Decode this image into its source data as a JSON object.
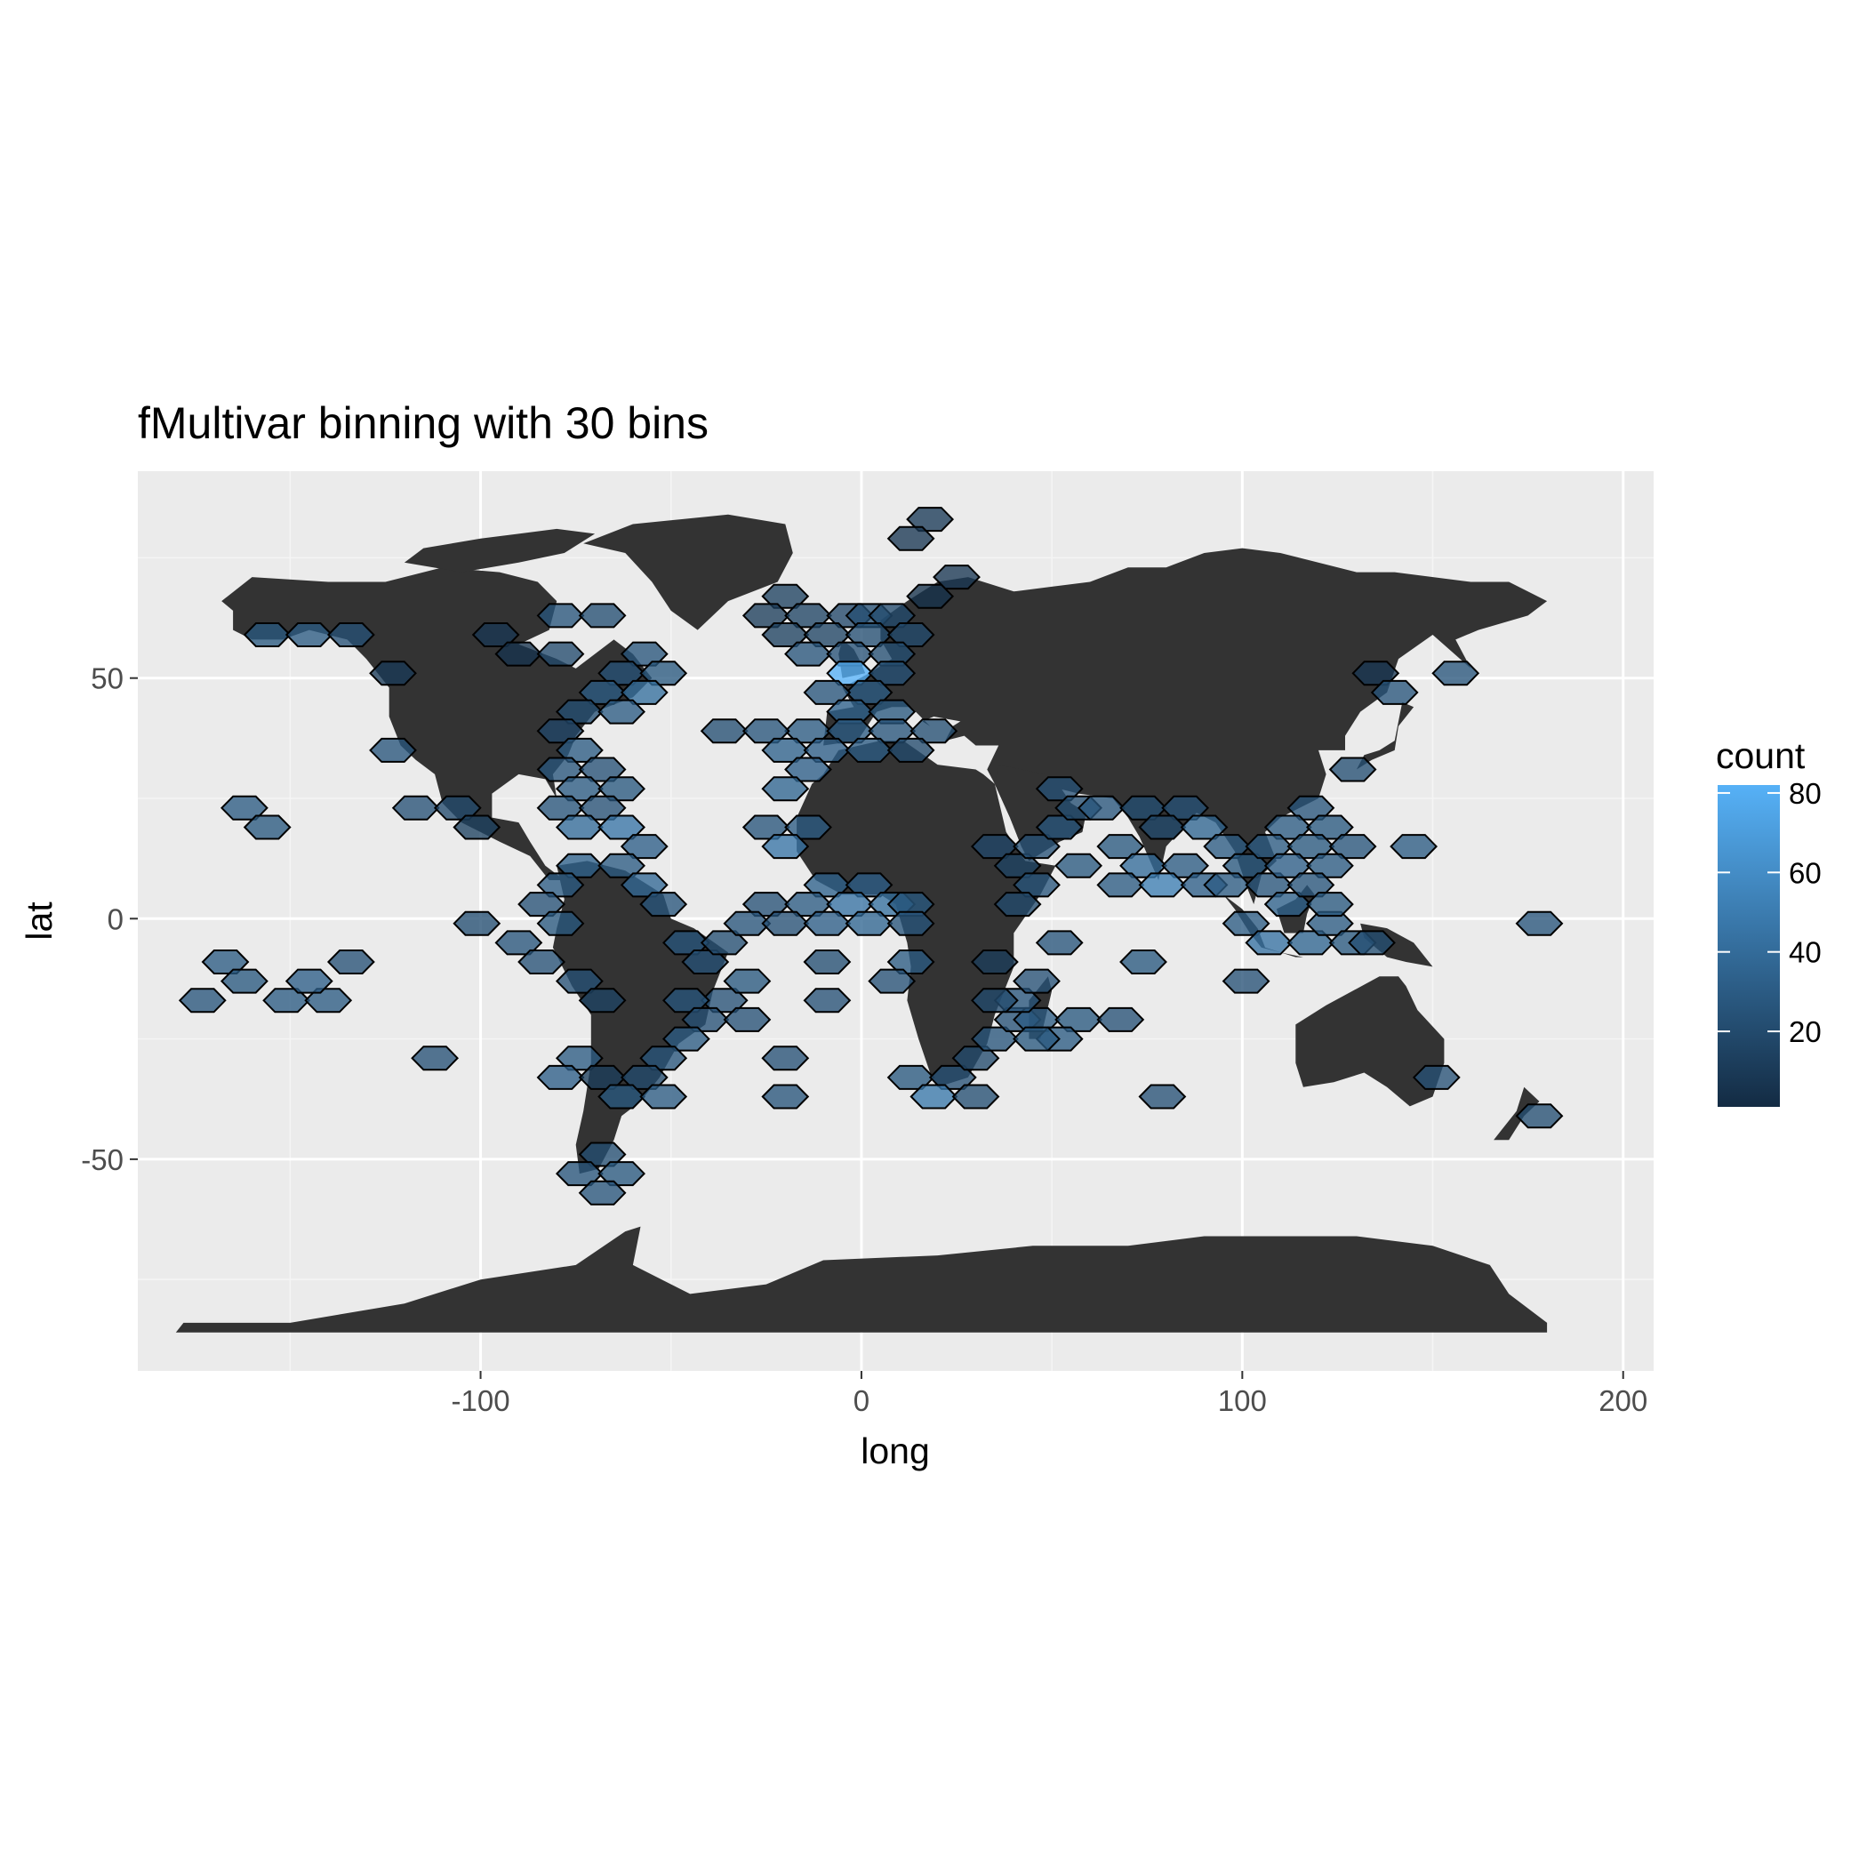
{
  "chart_data": {
    "type": "heatmap",
    "subtype": "hexbin",
    "title": "fMultivar binning with 30 bins",
    "xlabel": "long",
    "ylabel": "lat",
    "xlim": [
      -190,
      208
    ],
    "ylim": [
      -94,
      93
    ],
    "x_ticks": [
      -100,
      0,
      100,
      200
    ],
    "x_tick_labels": [
      "-100",
      "0",
      "100",
      "200"
    ],
    "y_ticks": [
      -50,
      0,
      50
    ],
    "y_tick_labels": [
      "-50",
      "0",
      "50"
    ],
    "grid": true,
    "background": "#ebebeb",
    "land_color": "#333333",
    "legend": {
      "title": "count",
      "position": "right",
      "breaks": [
        20,
        40,
        60,
        80
      ],
      "labels": [
        "20",
        "40",
        "60",
        "80"
      ],
      "range": [
        1,
        82
      ],
      "low_color": "#132b43",
      "high_color": "#56b1f7"
    },
    "bins": [
      {
        "x": 18,
        "y": 83,
        "count": 10
      },
      {
        "x": 13,
        "y": 79,
        "count": 8
      },
      {
        "x": 25,
        "y": 71,
        "count": 8
      },
      {
        "x": 18,
        "y": 67,
        "count": 5
      },
      {
        "x": -20,
        "y": 67,
        "count": 14
      },
      {
        "x": -25,
        "y": 63,
        "count": 12
      },
      {
        "x": -14,
        "y": 63,
        "count": 16
      },
      {
        "x": -3,
        "y": 63,
        "count": 18
      },
      {
        "x": 2,
        "y": 63,
        "count": 22
      },
      {
        "x": 8,
        "y": 63,
        "count": 20
      },
      {
        "x": -20,
        "y": 59,
        "count": 14
      },
      {
        "x": -9,
        "y": 59,
        "count": 16
      },
      {
        "x": 2,
        "y": 59,
        "count": 22
      },
      {
        "x": 13,
        "y": 59,
        "count": 20
      },
      {
        "x": -14,
        "y": 55,
        "count": 26
      },
      {
        "x": -3,
        "y": 55,
        "count": 24
      },
      {
        "x": 8,
        "y": 55,
        "count": 22
      },
      {
        "x": -3,
        "y": 51,
        "count": 82
      },
      {
        "x": 8,
        "y": 51,
        "count": 24
      },
      {
        "x": 2,
        "y": 47,
        "count": 30
      },
      {
        "x": -9,
        "y": 47,
        "count": 26
      },
      {
        "x": -3,
        "y": 43,
        "count": 34
      },
      {
        "x": 8,
        "y": 43,
        "count": 28
      },
      {
        "x": -14,
        "y": 39,
        "count": 30
      },
      {
        "x": -3,
        "y": 39,
        "count": 30
      },
      {
        "x": 8,
        "y": 39,
        "count": 26
      },
      {
        "x": 19,
        "y": 39,
        "count": 22
      },
      {
        "x": -36,
        "y": 39,
        "count": 22
      },
      {
        "x": -25,
        "y": 39,
        "count": 26
      },
      {
        "x": -20,
        "y": 35,
        "count": 34
      },
      {
        "x": -9,
        "y": 35,
        "count": 32
      },
      {
        "x": 2,
        "y": 35,
        "count": 30
      },
      {
        "x": 13,
        "y": 35,
        "count": 20
      },
      {
        "x": -14,
        "y": 31,
        "count": 32
      },
      {
        "x": -20,
        "y": 27,
        "count": 36
      },
      {
        "x": -156,
        "y": 59,
        "count": 28
      },
      {
        "x": -145,
        "y": 59,
        "count": 30
      },
      {
        "x": -134,
        "y": 59,
        "count": 24
      },
      {
        "x": -123,
        "y": 51,
        "count": 10
      },
      {
        "x": -96,
        "y": 59,
        "count": 8
      },
      {
        "x": -90,
        "y": 55,
        "count": 6
      },
      {
        "x": -79,
        "y": 55,
        "count": 20
      },
      {
        "x": -79,
        "y": 63,
        "count": 26
      },
      {
        "x": -68,
        "y": 63,
        "count": 22
      },
      {
        "x": -57,
        "y": 55,
        "count": 26
      },
      {
        "x": -63,
        "y": 51,
        "count": 24
      },
      {
        "x": -52,
        "y": 51,
        "count": 28
      },
      {
        "x": -68,
        "y": 47,
        "count": 30
      },
      {
        "x": -57,
        "y": 47,
        "count": 42
      },
      {
        "x": -74,
        "y": 43,
        "count": 22
      },
      {
        "x": -63,
        "y": 43,
        "count": 30
      },
      {
        "x": -79,
        "y": 39,
        "count": 18
      },
      {
        "x": -74,
        "y": 35,
        "count": 30
      },
      {
        "x": -79,
        "y": 31,
        "count": 26
      },
      {
        "x": -68,
        "y": 31,
        "count": 24
      },
      {
        "x": -74,
        "y": 27,
        "count": 30
      },
      {
        "x": -63,
        "y": 27,
        "count": 28
      },
      {
        "x": -79,
        "y": 23,
        "count": 26
      },
      {
        "x": -68,
        "y": 23,
        "count": 24
      },
      {
        "x": -74,
        "y": 19,
        "count": 40
      },
      {
        "x": -63,
        "y": 19,
        "count": 46
      },
      {
        "x": -57,
        "y": 15,
        "count": 32
      },
      {
        "x": -74,
        "y": 11,
        "count": 34
      },
      {
        "x": -63,
        "y": 11,
        "count": 30
      },
      {
        "x": -79,
        "y": 7,
        "count": 30
      },
      {
        "x": -57,
        "y": 7,
        "count": 38
      },
      {
        "x": -123,
        "y": 35,
        "count": 26
      },
      {
        "x": -117,
        "y": 23,
        "count": 24
      },
      {
        "x": -106,
        "y": 23,
        "count": 20
      },
      {
        "x": -101,
        "y": 19,
        "count": 14
      },
      {
        "x": -162,
        "y": 23,
        "count": 30
      },
      {
        "x": -156,
        "y": 19,
        "count": 28
      },
      {
        "x": -101,
        "y": -1,
        "count": 22
      },
      {
        "x": -84,
        "y": 3,
        "count": 24
      },
      {
        "x": -90,
        "y": -5,
        "count": 26
      },
      {
        "x": -79,
        "y": -1,
        "count": 28
      },
      {
        "x": -52,
        "y": 3,
        "count": 26
      },
      {
        "x": -84,
        "y": -9,
        "count": 24
      },
      {
        "x": -74,
        "y": -13,
        "count": 24
      },
      {
        "x": -68,
        "y": -17,
        "count": 16
      },
      {
        "x": -46,
        "y": -5,
        "count": 26
      },
      {
        "x": -41,
        "y": -9,
        "count": 24
      },
      {
        "x": -36,
        "y": -5,
        "count": 22
      },
      {
        "x": -36,
        "y": -17,
        "count": 24
      },
      {
        "x": -30,
        "y": -13,
        "count": 28
      },
      {
        "x": -46,
        "y": -17,
        "count": 26
      },
      {
        "x": -41,
        "y": -21,
        "count": 24
      },
      {
        "x": -30,
        "y": -21,
        "count": 24
      },
      {
        "x": -46,
        "y": -25,
        "count": 30
      },
      {
        "x": -52,
        "y": -29,
        "count": 26
      },
      {
        "x": -74,
        "y": -29,
        "count": 30
      },
      {
        "x": -79,
        "y": -33,
        "count": 32
      },
      {
        "x": -68,
        "y": -33,
        "count": 12
      },
      {
        "x": -57,
        "y": -33,
        "count": 20
      },
      {
        "x": -63,
        "y": -37,
        "count": 28
      },
      {
        "x": -52,
        "y": -37,
        "count": 30
      },
      {
        "x": -68,
        "y": -49,
        "count": 22
      },
      {
        "x": -74,
        "y": -53,
        "count": 26
      },
      {
        "x": -63,
        "y": -53,
        "count": 28
      },
      {
        "x": -68,
        "y": -57,
        "count": 26
      },
      {
        "x": -112,
        "y": -29,
        "count": 24
      },
      {
        "x": -167,
        "y": -9,
        "count": 30
      },
      {
        "x": -162,
        "y": -13,
        "count": 28
      },
      {
        "x": -173,
        "y": -17,
        "count": 26
      },
      {
        "x": -151,
        "y": -17,
        "count": 30
      },
      {
        "x": -140,
        "y": -17,
        "count": 30
      },
      {
        "x": -145,
        "y": -13,
        "count": 32
      },
      {
        "x": -134,
        "y": -9,
        "count": 24
      },
      {
        "x": -25,
        "y": 19,
        "count": 26
      },
      {
        "x": -14,
        "y": 19,
        "count": 30
      },
      {
        "x": -20,
        "y": 15,
        "count": 46
      },
      {
        "x": -25,
        "y": 3,
        "count": 24
      },
      {
        "x": -30,
        "y": -1,
        "count": 26
      },
      {
        "x": -9,
        "y": 7,
        "count": 34
      },
      {
        "x": 2,
        "y": 7,
        "count": 32
      },
      {
        "x": -14,
        "y": 3,
        "count": 30
      },
      {
        "x": -3,
        "y": 3,
        "count": 44
      },
      {
        "x": 8,
        "y": 3,
        "count": 42
      },
      {
        "x": 13,
        "y": 3,
        "count": 28
      },
      {
        "x": -20,
        "y": -1,
        "count": 24
      },
      {
        "x": -9,
        "y": -1,
        "count": 32
      },
      {
        "x": 2,
        "y": -1,
        "count": 36
      },
      {
        "x": 13,
        "y": -1,
        "count": 26
      },
      {
        "x": -9,
        "y": -9,
        "count": 22
      },
      {
        "x": 13,
        "y": -9,
        "count": 30
      },
      {
        "x": 8,
        "y": -13,
        "count": 24
      },
      {
        "x": -9,
        "y": -17,
        "count": 24
      },
      {
        "x": -20,
        "y": -29,
        "count": 24
      },
      {
        "x": -20,
        "y": -37,
        "count": 26
      },
      {
        "x": 13,
        "y": -33,
        "count": 28
      },
      {
        "x": 24,
        "y": -33,
        "count": 24
      },
      {
        "x": 19,
        "y": -37,
        "count": 48
      },
      {
        "x": 30,
        "y": -37,
        "count": 22
      },
      {
        "x": 30,
        "y": -29,
        "count": 20
      },
      {
        "x": 35,
        "y": -25,
        "count": 26
      },
      {
        "x": 41,
        "y": -21,
        "count": 24
      },
      {
        "x": 46,
        "y": -21,
        "count": 30
      },
      {
        "x": 57,
        "y": -21,
        "count": 28
      },
      {
        "x": 52,
        "y": -25,
        "count": 30
      },
      {
        "x": 46,
        "y": -25,
        "count": 28
      },
      {
        "x": 41,
        "y": -17,
        "count": 26
      },
      {
        "x": 46,
        "y": -13,
        "count": 24
      },
      {
        "x": 35,
        "y": -17,
        "count": 20
      },
      {
        "x": 35,
        "y": -9,
        "count": 12
      },
      {
        "x": 68,
        "y": -21,
        "count": 24
      },
      {
        "x": 52,
        "y": -5,
        "count": 26
      },
      {
        "x": 74,
        "y": -9,
        "count": 28
      },
      {
        "x": 79,
        "y": -37,
        "count": 24
      },
      {
        "x": 35,
        "y": 15,
        "count": 18
      },
      {
        "x": 41,
        "y": 11,
        "count": 16
      },
      {
        "x": 46,
        "y": 15,
        "count": 24
      },
      {
        "x": 52,
        "y": 19,
        "count": 26
      },
      {
        "x": 57,
        "y": 11,
        "count": 28
      },
      {
        "x": 46,
        "y": 7,
        "count": 26
      },
      {
        "x": 41,
        "y": 3,
        "count": 20
      },
      {
        "x": 52,
        "y": 27,
        "count": 24
      },
      {
        "x": 57,
        "y": 23,
        "count": 22
      },
      {
        "x": 63,
        "y": 23,
        "count": 26
      },
      {
        "x": 74,
        "y": 23,
        "count": 22
      },
      {
        "x": 85,
        "y": 23,
        "count": 24
      },
      {
        "x": 68,
        "y": 15,
        "count": 28
      },
      {
        "x": 79,
        "y": 19,
        "count": 20
      },
      {
        "x": 74,
        "y": 11,
        "count": 40
      },
      {
        "x": 85,
        "y": 11,
        "count": 30
      },
      {
        "x": 68,
        "y": 7,
        "count": 30
      },
      {
        "x": 79,
        "y": 7,
        "count": 52
      },
      {
        "x": 90,
        "y": 7,
        "count": 32
      },
      {
        "x": 90,
        "y": 19,
        "count": 36
      },
      {
        "x": 96,
        "y": 15,
        "count": 30
      },
      {
        "x": 101,
        "y": 11,
        "count": 28
      },
      {
        "x": 96,
        "y": 7,
        "count": 30
      },
      {
        "x": 107,
        "y": 7,
        "count": 26
      },
      {
        "x": 101,
        "y": -1,
        "count": 30
      },
      {
        "x": 112,
        "y": 3,
        "count": 34
      },
      {
        "x": 107,
        "y": -5,
        "count": 44
      },
      {
        "x": 118,
        "y": -5,
        "count": 36
      },
      {
        "x": 101,
        "y": -13,
        "count": 24
      },
      {
        "x": 123,
        "y": -1,
        "count": 30
      },
      {
        "x": 129,
        "y": -5,
        "count": 28
      },
      {
        "x": 134,
        "y": -5,
        "count": 22
      },
      {
        "x": 118,
        "y": 23,
        "count": 26
      },
      {
        "x": 112,
        "y": 19,
        "count": 30
      },
      {
        "x": 123,
        "y": 19,
        "count": 28
      },
      {
        "x": 107,
        "y": 15,
        "count": 30
      },
      {
        "x": 118,
        "y": 15,
        "count": 28
      },
      {
        "x": 129,
        "y": 15,
        "count": 26
      },
      {
        "x": 145,
        "y": 15,
        "count": 30
      },
      {
        "x": 112,
        "y": 11,
        "count": 32
      },
      {
        "x": 123,
        "y": 11,
        "count": 30
      },
      {
        "x": 118,
        "y": 7,
        "count": 26
      },
      {
        "x": 123,
        "y": 3,
        "count": 28
      },
      {
        "x": 135,
        "y": 51,
        "count": 8
      },
      {
        "x": 140,
        "y": 47,
        "count": 26
      },
      {
        "x": 156,
        "y": 51,
        "count": 26
      },
      {
        "x": 129,
        "y": 31,
        "count": 22
      },
      {
        "x": 178,
        "y": -1,
        "count": 26
      },
      {
        "x": 151,
        "y": -33,
        "count": 24
      },
      {
        "x": 178,
        "y": -41,
        "count": 22
      }
    ]
  }
}
